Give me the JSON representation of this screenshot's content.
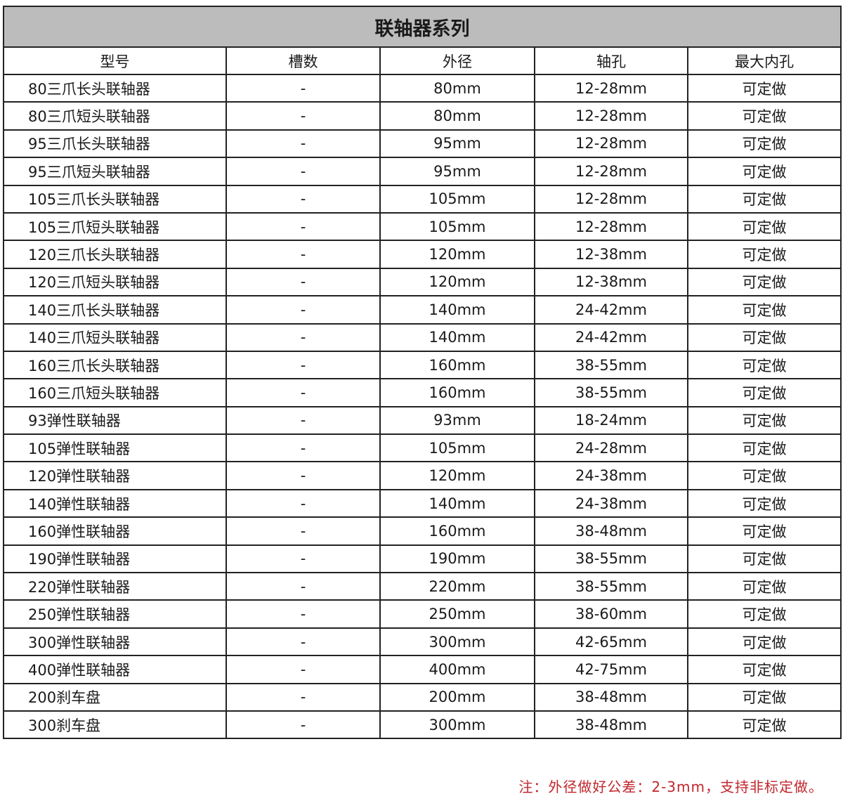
{
  "title": "联轴器系列",
  "headers": [
    "型号",
    "槽数",
    "外径",
    "轴孔",
    "最大内孔"
  ],
  "rows": [
    [
      "80三爪长头联轴器",
      "-",
      "80mm",
      "12-28mm",
      "可定做"
    ],
    [
      "80三爪短头联轴器",
      "-",
      "80mm",
      "12-28mm",
      "可定做"
    ],
    [
      "95三爪长头联轴器",
      "-",
      "95mm",
      "12-28mm",
      "可定做"
    ],
    [
      "95三爪短头联轴器",
      "-",
      "95mm",
      "12-28mm",
      "可定做"
    ],
    [
      "105三爪长头联轴器",
      "-",
      "105mm",
      "12-28mm",
      "可定做"
    ],
    [
      "105三爪短头联轴器",
      "-",
      "105mm",
      "12-28mm",
      "可定做"
    ],
    [
      "120三爪长头联轴器",
      "-",
      "120mm",
      "12-38mm",
      "可定做"
    ],
    [
      "120三爪短头联轴器",
      "-",
      "120mm",
      "12-38mm",
      "可定做"
    ],
    [
      "140三爪长头联轴器",
      "-",
      "140mm",
      "24-42mm",
      "可定做"
    ],
    [
      "140三爪短头联轴器",
      "-",
      "140mm",
      "24-42mm",
      "可定做"
    ],
    [
      "160三爪长头联轴器",
      "-",
      "160mm",
      "38-55mm",
      "可定做"
    ],
    [
      "160三爪短头联轴器",
      "-",
      "160mm",
      "38-55mm",
      "可定做"
    ],
    [
      "93弹性联轴器",
      "-",
      "93mm",
      "18-24mm",
      "可定做"
    ],
    [
      "105弹性联轴器",
      "-",
      "105mm",
      "24-28mm",
      "可定做"
    ],
    [
      "120弹性联轴器",
      "-",
      "120mm",
      "24-38mm",
      "可定做"
    ],
    [
      "140弹性联轴器",
      "-",
      "140mm",
      "24-38mm",
      "可定做"
    ],
    [
      "160弹性联轴器",
      "-",
      "160mm",
      "38-48mm",
      "可定做"
    ],
    [
      "190弹性联轴器",
      "-",
      "190mm",
      "38-55mm",
      "可定做"
    ],
    [
      "220弹性联轴器",
      "-",
      "220mm",
      "38-55mm",
      "可定做"
    ],
    [
      "250弹性联轴器",
      "-",
      "250mm",
      "38-60mm",
      "可定做"
    ],
    [
      "300弹性联轴器",
      "-",
      "300mm",
      "42-65mm",
      "可定做"
    ],
    [
      "400弹性联轴器",
      "-",
      "400mm",
      "42-75mm",
      "可定做"
    ],
    [
      "200刹车盘",
      "-",
      "200mm",
      "38-48mm",
      "可定做"
    ],
    [
      "300刹车盘",
      "-",
      "300mm",
      "38-48mm",
      "可定做"
    ]
  ],
  "note": "注：外径做好公差：2-3mm，支持非标定做。",
  "colors": {
    "title_bg": "#bcbcbc",
    "note": "#c0272d",
    "border": "#222222"
  }
}
